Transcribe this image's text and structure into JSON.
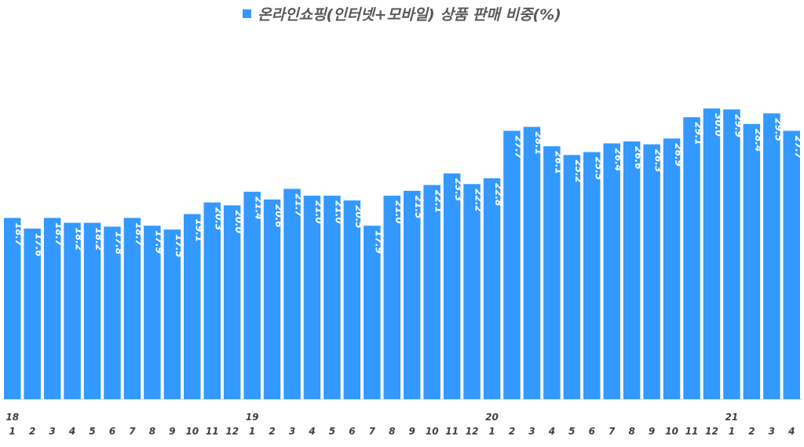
{
  "colors": {
    "bar": "#3399ff",
    "axis": "#d9d9d9",
    "tick_text": "#404040",
    "label_text": "#ffffff"
  },
  "chart_data": {
    "type": "bar",
    "legend": {
      "series_name": "온라인쇼핑(인터넷+모바일) 상품 판매 비중(%)",
      "position": "top"
    },
    "title": "",
    "xlabel": "",
    "ylabel": "",
    "grid": false,
    "ylim": [
      0,
      33
    ],
    "year_labels": [
      {
        "index": 0,
        "label": "18"
      },
      {
        "index": 12,
        "label": "19"
      },
      {
        "index": 24,
        "label": "20"
      },
      {
        "index": 36,
        "label": "21"
      }
    ],
    "categories": [
      "1",
      "2",
      "3",
      "4",
      "5",
      "6",
      "7",
      "8",
      "9",
      "10",
      "11",
      "12",
      "1",
      "2",
      "3",
      "4",
      "5",
      "6",
      "7",
      "8",
      "9",
      "10",
      "11",
      "12",
      "1",
      "2",
      "3",
      "4",
      "5",
      "6",
      "7",
      "8",
      "9",
      "10",
      "11",
      "12",
      "1",
      "2",
      "3",
      "4"
    ],
    "series": [
      {
        "name": "온라인쇼핑(인터넷+모바일) 상품 판매 비중(%)",
        "values": [
          18.7,
          17.6,
          18.7,
          18.2,
          18.2,
          17.8,
          18.7,
          17.9,
          17.5,
          19.1,
          20.3,
          20.0,
          21.4,
          20.6,
          21.7,
          21.0,
          21.0,
          20.5,
          17.9,
          21.0,
          21.5,
          22.1,
          23.3,
          22.2,
          22.8,
          27.7,
          28.1,
          26.1,
          25.2,
          25.5,
          26.4,
          26.6,
          26.3,
          26.9,
          29.1,
          30.0,
          29.9,
          28.4,
          29.5,
          27.7
        ],
        "data_labels": [
          "18.7",
          "17.6",
          "18.7",
          "18.2",
          "18.2",
          "17.8",
          "18.7",
          "17.9",
          "17.5",
          "19.1",
          "20.3",
          "20.0",
          "21.4",
          "20.6",
          "21.7",
          "21.0",
          "21.0",
          "20.5",
          "17.9",
          "21.0",
          "21.5",
          "22.1",
          "23.3",
          "22.2",
          "22.8",
          "27.7",
          "28.1",
          "26.1",
          "25.2",
          "25.5",
          "26.4",
          "26.6",
          "26.3",
          "26.9",
          "29.1",
          "30.0",
          "29.9",
          "28.4",
          "29.5",
          "27.7"
        ]
      }
    ]
  }
}
